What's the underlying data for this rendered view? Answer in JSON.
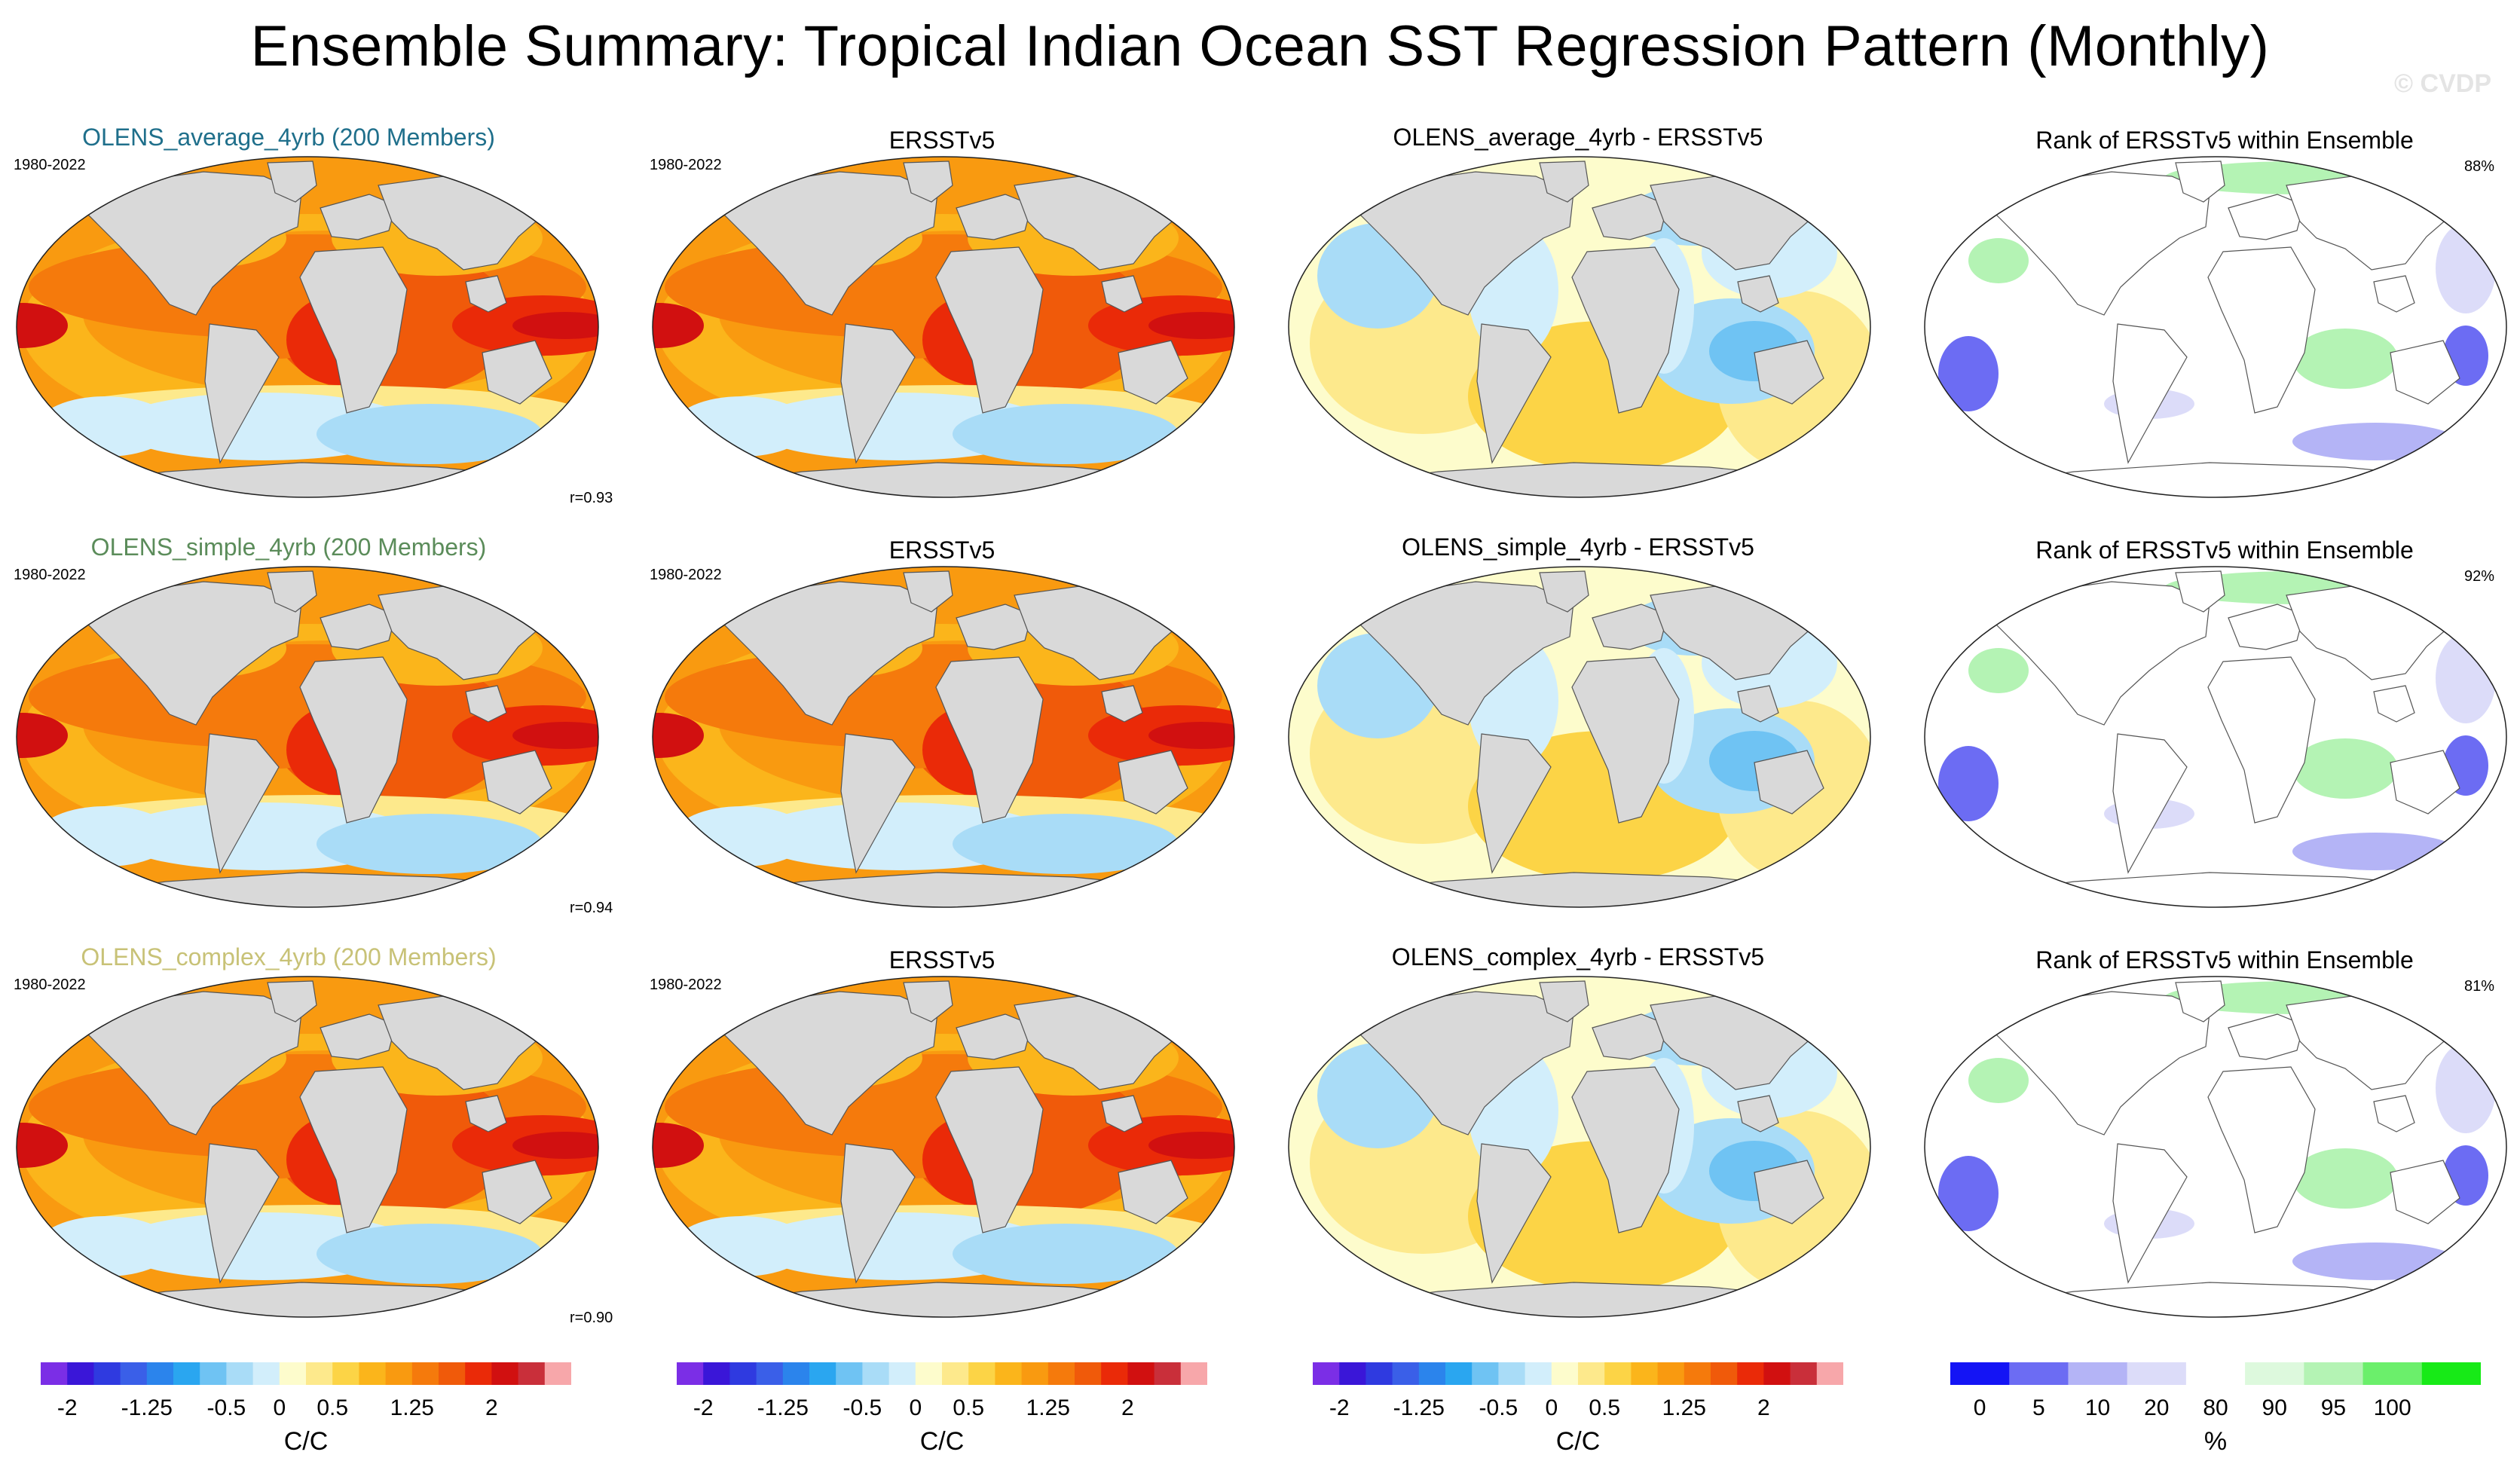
{
  "title": "Ensemble Summary: Tropical Indian Ocean SST Regression Pattern (Monthly)",
  "watermark": "© CVDP",
  "colors": {
    "land": "#d9d9d9",
    "title_row1": "#1f6f8b",
    "title_row2": "#5b8c5a",
    "title_row3": "#c8c277"
  },
  "rows": [
    {
      "ens_title": "OLENS_average_4yrb (200 Members)",
      "period": "1980-2022",
      "r_label": "r=0.93",
      "obs_title": "ERSSTv5",
      "obs_period": "1980-2022",
      "diff_title": "OLENS_average_4yrb - ERSSTv5",
      "rank_title": "Rank of ERSSTv5 within Ensemble",
      "rank_pct": "88%"
    },
    {
      "ens_title": "OLENS_simple_4yrb (200 Members)",
      "period": "1980-2022",
      "r_label": "r=0.94",
      "obs_title": "ERSSTv5",
      "obs_period": "1980-2022",
      "diff_title": "OLENS_simple_4yrb - ERSSTv5",
      "rank_title": "Rank of ERSSTv5 within Ensemble",
      "rank_pct": "92%"
    },
    {
      "ens_title": "OLENS_complex_4yrb (200 Members)",
      "period": "1980-2022",
      "r_label": "r=0.90",
      "obs_title": "ERSSTv5",
      "obs_period": "1980-2022",
      "diff_title": "OLENS_complex_4yrb - ERSSTv5",
      "rank_title": "Rank of ERSSTv5 within Ensemble",
      "rank_pct": "81%"
    }
  ],
  "colorbars": {
    "regression": {
      "colors": [
        "#7b2ee6",
        "#3a16d8",
        "#2f3ae0",
        "#3a5fe8",
        "#2b84ec",
        "#2aa6f0",
        "#6fc3f3",
        "#a9dcf7",
        "#d2eefb",
        "#fdfccc",
        "#fde98c",
        "#fcd446",
        "#fbb51b",
        "#f99a10",
        "#f57a0c",
        "#f05a0a",
        "#ea2a08",
        "#d11010",
        "#c92f3a",
        "#f7a7aa"
      ],
      "tick_labels": [
        "-2",
        "-1.25",
        "-0.5",
        "0",
        "0.5",
        "1.25",
        "2"
      ],
      "tick_values": [
        -2,
        -1.25,
        -0.5,
        0,
        0.5,
        1.25,
        2
      ],
      "units": "C/C"
    },
    "rank": {
      "colors": [
        "#1414f5",
        "#6c6cf3",
        "#b4b4f6",
        "#dcdcf9",
        "#ffffff",
        "#ddf9dd",
        "#b4f3b4",
        "#6bef6b",
        "#17ea17"
      ],
      "tick_labels": [
        "0",
        "5",
        "10",
        "20",
        "80",
        "90",
        "95",
        "100"
      ],
      "units": "%"
    }
  },
  "chart_data": [
    {
      "type": "heatmap",
      "panel": "ensemble",
      "title": "OLENS_average_4yrb (200 Members)",
      "period": "1980-2022",
      "pattern_correlation": 0.93,
      "units": "C/C",
      "range": [
        -2,
        2
      ],
      "max_region": "tropical Indian Ocean and equatorial Pacific",
      "max_value": 2
    },
    {
      "type": "heatmap",
      "panel": "observation",
      "title": "ERSSTv5",
      "period": "1980-2022",
      "units": "C/C",
      "range": [
        -2,
        2
      ]
    },
    {
      "type": "heatmap",
      "panel": "difference",
      "title": "OLENS_average_4yrb - ERSSTv5",
      "units": "C/C",
      "range": [
        -2,
        2
      ]
    },
    {
      "type": "heatmap",
      "panel": "rank",
      "title": "Rank of ERSSTv5 within Ensemble",
      "units": "%",
      "percent_within": 88
    },
    {
      "type": "heatmap",
      "panel": "ensemble",
      "title": "OLENS_simple_4yrb (200 Members)",
      "period": "1980-2022",
      "pattern_correlation": 0.94,
      "units": "C/C",
      "range": [
        -2,
        2
      ]
    },
    {
      "type": "heatmap",
      "panel": "observation",
      "title": "ERSSTv5",
      "period": "1980-2022",
      "units": "C/C",
      "range": [
        -2,
        2
      ]
    },
    {
      "type": "heatmap",
      "panel": "difference",
      "title": "OLENS_simple_4yrb - ERSSTv5",
      "units": "C/C",
      "range": [
        -2,
        2
      ]
    },
    {
      "type": "heatmap",
      "panel": "rank",
      "title": "Rank of ERSSTv5 within Ensemble",
      "units": "%",
      "percent_within": 92
    },
    {
      "type": "heatmap",
      "panel": "ensemble",
      "title": "OLENS_complex_4yrb (200 Members)",
      "period": "1980-2022",
      "pattern_correlation": 0.9,
      "units": "C/C",
      "range": [
        -2,
        2
      ]
    },
    {
      "type": "heatmap",
      "panel": "observation",
      "title": "ERSSTv5",
      "period": "1980-2022",
      "units": "C/C",
      "range": [
        -2,
        2
      ]
    },
    {
      "type": "heatmap",
      "panel": "difference",
      "title": "OLENS_complex_4yrb - ERSSTv5",
      "units": "C/C",
      "range": [
        -2,
        2
      ]
    },
    {
      "type": "heatmap",
      "panel": "rank",
      "title": "Rank of ERSSTv5 within Ensemble",
      "units": "%",
      "percent_within": 81
    }
  ]
}
